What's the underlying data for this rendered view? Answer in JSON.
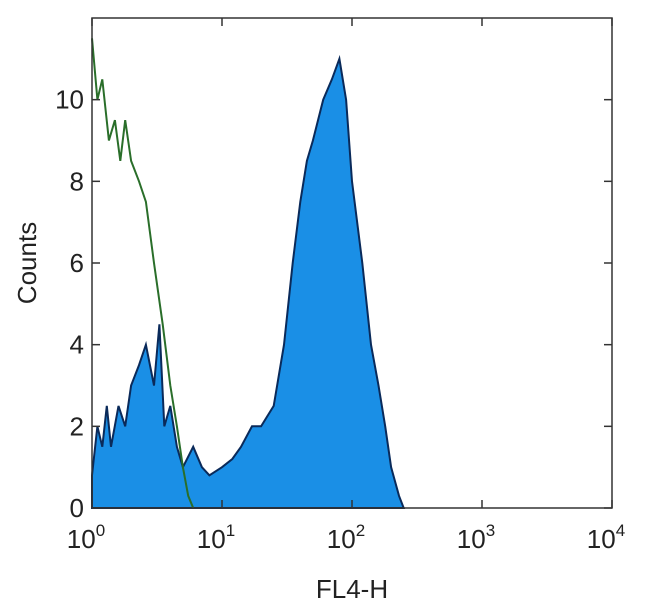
{
  "chart_data": {
    "type": "area",
    "title": "",
    "xlabel": "FL4-H",
    "ylabel": "Counts",
    "xscale": "log",
    "xlim": [
      1,
      10000
    ],
    "ylim": [
      0,
      12
    ],
    "x_ticks": [
      {
        "base": "10",
        "exp": "0"
      },
      {
        "base": "10",
        "exp": "1"
      },
      {
        "base": "10",
        "exp": "2"
      },
      {
        "base": "10",
        "exp": "3"
      },
      {
        "base": "10",
        "exp": "4"
      }
    ],
    "y_ticks": [
      "0",
      "2",
      "4",
      "6",
      "8",
      "10"
    ],
    "grid": false,
    "series": [
      {
        "color": "#1a8fe6",
        "edge_color": "#0a2a5a",
        "filled": true,
        "x": [
          1,
          1.1,
          1.2,
          1.3,
          1.4,
          1.6,
          1.8,
          2,
          2.3,
          2.6,
          3,
          3.3,
          3.6,
          4,
          4.5,
          5,
          6,
          7,
          8,
          10,
          12,
          14,
          17,
          20,
          25,
          30,
          35,
          40,
          45,
          50,
          60,
          70,
          80,
          90,
          100,
          120,
          140,
          160,
          180,
          200,
          230,
          250
        ],
        "y": [
          0.8,
          2,
          1.5,
          2.5,
          1.5,
          2.5,
          2,
          3,
          3.5,
          4,
          3,
          4.5,
          2,
          2.5,
          1.5,
          1,
          1.5,
          1,
          0.8,
          1,
          1.2,
          1.5,
          2,
          2,
          2.5,
          4,
          6,
          7.5,
          8.5,
          9,
          10,
          10.5,
          11,
          10,
          8,
          6,
          4,
          3,
          2,
          1,
          0.3,
          0
        ]
      },
      {
        "color": "#2a6e2a",
        "filled": false,
        "x": [
          1,
          1.1,
          1.2,
          1.35,
          1.5,
          1.65,
          1.8,
          2,
          2.3,
          2.6,
          3,
          3.5,
          4,
          4.5,
          5,
          5.5,
          6
        ],
        "y": [
          11.5,
          10,
          10.5,
          9,
          9.5,
          8.5,
          9.5,
          8.5,
          8,
          7.5,
          6,
          4.5,
          3,
          2,
          1,
          0.3,
          0
        ]
      }
    ]
  }
}
